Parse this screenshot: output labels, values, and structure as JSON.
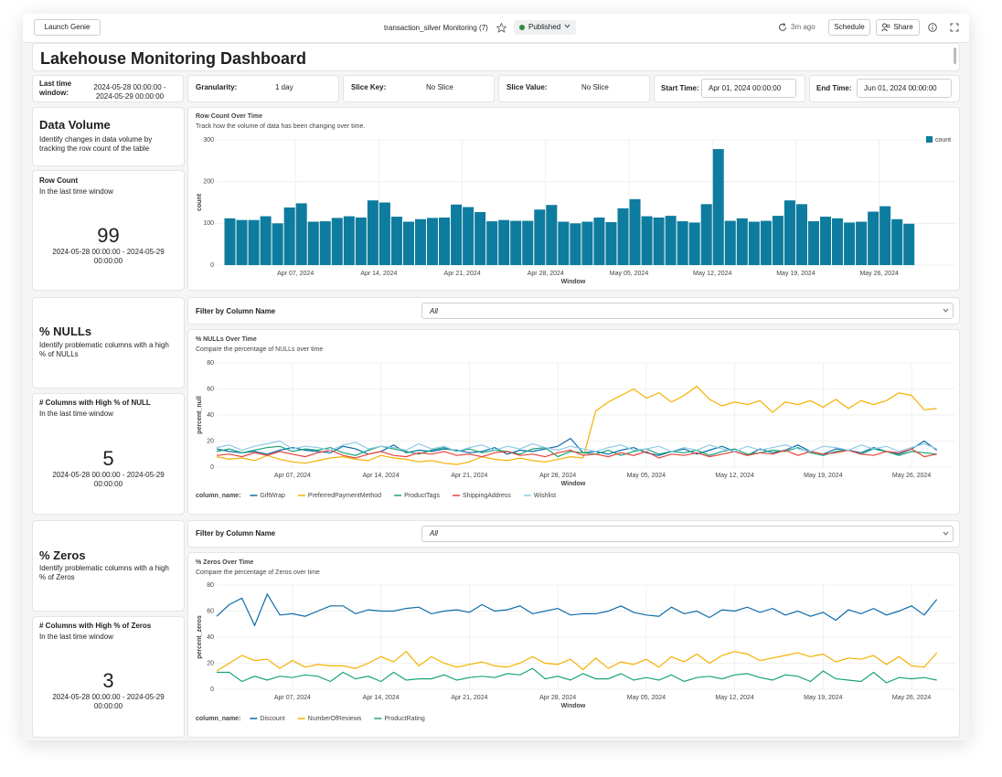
{
  "toolbar": {
    "launch_button": "Launch Genie",
    "dashboard_name": "transaction_silver Monitoring (7)",
    "status": "Published",
    "refreshed": "3m ago",
    "schedule": "Schedule",
    "share": "Share"
  },
  "title": "Lakehouse Monitoring Dashboard",
  "filters": {
    "time_window_label": "Last time window:",
    "time_window_value": "2024-05-28 00:00:00 - 2024-05-29 00:00:00",
    "granularity_label": "Granularity:",
    "granularity_value": "1 day",
    "slice_key_label": "Slice Key:",
    "slice_key_value": "No Slice",
    "slice_value_label": "Slice Value:",
    "slice_value_value": "No Slice",
    "start_label": "Start Time:",
    "start_value": "Apr 01, 2024 00:00:00",
    "end_label": "End Time:",
    "end_value": "Jun 01, 2024 00:00:00"
  },
  "sections": [
    {
      "heading": "Data Volume",
      "description": "Identify changes in data volume by tracking the row count of the table",
      "counter": {
        "title": "Row Count",
        "subtitle": "In the last time window",
        "value": 99,
        "range": "2024-05-28 00:00:00 - 2024-05-29 00:00:00"
      }
    },
    {
      "heading": "% NULLs",
      "description": "Identify problematic columns with a high % of NULLs",
      "filter": {
        "label": "Filter by Column Name",
        "value": "All"
      },
      "counter": {
        "title": "# Columns with High % of NULL",
        "subtitle": "In the last time window",
        "value": 5,
        "range": "2024-05-28 00:00:00 - 2024-05-29 00:00:00"
      }
    },
    {
      "heading": "% Zeros",
      "description": "Identify problematic columns with a high % of Zeros",
      "filter": {
        "label": "Filter by Column Name",
        "value": "All"
      },
      "counter": {
        "title": "# Columns with High % of Zeros",
        "subtitle": "In the last time window",
        "value": 3,
        "range": "2024-05-28 00:00:00 - 2024-05-29 00:00:00"
      }
    }
  ],
  "chart_data": [
    {
      "type": "bar",
      "title": "Row Count Over Time",
      "subtitle": "Track how the volume of data has been changing over time.",
      "x_label": "Window",
      "y_label": "count",
      "x": [
        "2024-04-01",
        "2024-04-02",
        "2024-04-03",
        "2024-04-04",
        "2024-04-05",
        "2024-04-06",
        "2024-04-07",
        "2024-04-08",
        "2024-04-09",
        "2024-04-10",
        "2024-04-11",
        "2024-04-12",
        "2024-04-13",
        "2024-04-14",
        "2024-04-15",
        "2024-04-16",
        "2024-04-17",
        "2024-04-18",
        "2024-04-19",
        "2024-04-20",
        "2024-04-21",
        "2024-04-22",
        "2024-04-23",
        "2024-04-24",
        "2024-04-25",
        "2024-04-26",
        "2024-04-27",
        "2024-04-28",
        "2024-04-29",
        "2024-04-30",
        "2024-05-01",
        "2024-05-02",
        "2024-05-03",
        "2024-05-04",
        "2024-05-05",
        "2024-05-06",
        "2024-05-07",
        "2024-05-08",
        "2024-05-09",
        "2024-05-10",
        "2024-05-11",
        "2024-05-12",
        "2024-05-13",
        "2024-05-14",
        "2024-05-15",
        "2024-05-16",
        "2024-05-17",
        "2024-05-18",
        "2024-05-19",
        "2024-05-20",
        "2024-05-21",
        "2024-05-22",
        "2024-05-23",
        "2024-05-24",
        "2024-05-25",
        "2024-05-26",
        "2024-05-27",
        "2024-05-28"
      ],
      "series": [
        {
          "name": "count",
          "color": "#0e7c9e",
          "values": [
            112,
            108,
            108,
            117,
            100,
            138,
            148,
            104,
            105,
            113,
            117,
            114,
            155,
            150,
            116,
            104,
            110,
            113,
            114,
            145,
            139,
            127,
            105,
            108,
            106,
            106,
            133,
            144,
            104,
            100,
            104,
            114,
            103,
            136,
            158,
            117,
            114,
            118,
            105,
            102,
            146,
            278,
            106,
            112,
            104,
            106,
            118,
            155,
            146,
            105,
            116,
            112,
            102,
            104,
            128,
            141,
            110,
            99
          ]
        }
      ],
      "ylim": [
        0,
        300
      ],
      "yticks": [
        0,
        100,
        200,
        300
      ],
      "xticks": [
        {
          "value": "2024-04-07",
          "label": "Apr 07, 2024"
        },
        {
          "value": "2024-04-14",
          "label": "Apr 14, 2024"
        },
        {
          "value": "2024-04-21",
          "label": "Apr 21, 2024"
        },
        {
          "value": "2024-04-28",
          "label": "Apr 28, 2024"
        },
        {
          "value": "2024-05-05",
          "label": "May 05, 2024"
        },
        {
          "value": "2024-05-12",
          "label": "May 12, 2024"
        },
        {
          "value": "2024-05-19",
          "label": "May 19, 2024"
        },
        {
          "value": "2024-05-26",
          "label": "May 26, 2024"
        }
      ],
      "grid": true,
      "legend": "top-right"
    },
    {
      "type": "line",
      "title": "% NULLs Over Time",
      "subtitle": "Compare the percentage of NULLs over time",
      "x_label": "Window",
      "y_label": "percent_null",
      "legend_title": "column_name:",
      "x": [
        "2024-04-01",
        "2024-04-02",
        "2024-04-03",
        "2024-04-04",
        "2024-04-05",
        "2024-04-06",
        "2024-04-07",
        "2024-04-08",
        "2024-04-09",
        "2024-04-10",
        "2024-04-11",
        "2024-04-12",
        "2024-04-13",
        "2024-04-14",
        "2024-04-15",
        "2024-04-16",
        "2024-04-17",
        "2024-04-18",
        "2024-04-19",
        "2024-04-20",
        "2024-04-21",
        "2024-04-22",
        "2024-04-23",
        "2024-04-24",
        "2024-04-25",
        "2024-04-26",
        "2024-04-27",
        "2024-04-28",
        "2024-04-29",
        "2024-04-30",
        "2024-05-01",
        "2024-05-02",
        "2024-05-03",
        "2024-05-04",
        "2024-05-05",
        "2024-05-06",
        "2024-05-07",
        "2024-05-08",
        "2024-05-09",
        "2024-05-10",
        "2024-05-11",
        "2024-05-12",
        "2024-05-13",
        "2024-05-14",
        "2024-05-15",
        "2024-05-16",
        "2024-05-17",
        "2024-05-18",
        "2024-05-19",
        "2024-05-20",
        "2024-05-21",
        "2024-05-22",
        "2024-05-23",
        "2024-05-24",
        "2024-05-25",
        "2024-05-26",
        "2024-05-27",
        "2024-05-28"
      ],
      "series": [
        {
          "name": "GiftWrap",
          "color": "#0b6ba8",
          "values": [
            14,
            12,
            11,
            12,
            10,
            13,
            15,
            13,
            12,
            11,
            16,
            14,
            10,
            12,
            17,
            11,
            13,
            12,
            14,
            13,
            11,
            12,
            15,
            10,
            13,
            12,
            14,
            16,
            22,
            11,
            12,
            10,
            13,
            15,
            11,
            9,
            12,
            14,
            10,
            13,
            16,
            12,
            9,
            14,
            11,
            13,
            17,
            12,
            10,
            14,
            13,
            11,
            15,
            12,
            10,
            14,
            20,
            13
          ]
        },
        {
          "name": "PreferredPaymentMethod",
          "color": "#f5b000",
          "values": [
            8,
            6,
            7,
            5,
            9,
            6,
            4,
            3,
            5,
            7,
            8,
            6,
            5,
            9,
            7,
            6,
            4,
            5,
            3,
            2,
            4,
            8,
            6,
            5,
            7,
            5,
            4,
            6,
            8,
            7,
            43,
            50,
            55,
            60,
            53,
            57,
            50,
            55,
            62,
            52,
            47,
            50,
            48,
            51,
            42,
            50,
            48,
            51,
            46,
            52,
            45,
            51,
            48,
            51,
            57,
            55,
            44,
            45
          ]
        },
        {
          "name": "ProductTags",
          "color": "#1aa37a",
          "values": [
            12,
            14,
            11,
            13,
            15,
            16,
            12,
            14,
            13,
            15,
            11,
            9,
            13,
            16,
            14,
            12,
            10,
            13,
            15,
            12,
            14,
            11,
            13,
            12,
            10,
            14,
            15,
            8,
            12,
            11,
            10,
            13,
            9,
            12,
            14,
            10,
            12,
            11,
            13,
            9,
            12,
            14,
            10,
            11,
            13,
            12,
            15,
            11,
            9,
            12,
            13,
            10,
            14,
            12,
            9,
            12,
            11,
            10
          ]
        },
        {
          "name": "ShippingAddress",
          "color": "#e8453c",
          "values": [
            9,
            10,
            8,
            11,
            9,
            12,
            10,
            8,
            11,
            13,
            9,
            7,
            10,
            12,
            9,
            8,
            11,
            10,
            12,
            9,
            10,
            8,
            11,
            12,
            9,
            10,
            8,
            11,
            13,
            9,
            10,
            8,
            11,
            9,
            12,
            7,
            10,
            9,
            11,
            8,
            10,
            12,
            9,
            11,
            10,
            13,
            9,
            12,
            10,
            11,
            13,
            10,
            9,
            12,
            11,
            14,
            8,
            10
          ]
        },
        {
          "name": "Wishlist",
          "color": "#8ecae6",
          "values": [
            15,
            17,
            13,
            16,
            18,
            20,
            14,
            16,
            15,
            13,
            17,
            19,
            14,
            16,
            15,
            13,
            18,
            14,
            16,
            12,
            15,
            17,
            13,
            16,
            14,
            18,
            15,
            13,
            16,
            14,
            12,
            15,
            17,
            13,
            14,
            16,
            12,
            15,
            13,
            17,
            14,
            12,
            16,
            13,
            15,
            17,
            14,
            12,
            16,
            15,
            13,
            17,
            14,
            16,
            12,
            15,
            18,
            14
          ]
        }
      ],
      "ylim": [
        0,
        80
      ],
      "yticks": [
        0,
        20,
        40,
        60,
        80
      ],
      "xticks": [
        {
          "value": "2024-04-07",
          "label": "Apr 07, 2024"
        },
        {
          "value": "2024-04-14",
          "label": "Apr 14, 2024"
        },
        {
          "value": "2024-04-21",
          "label": "Apr 21, 2024"
        },
        {
          "value": "2024-04-28",
          "label": "Apr 28, 2024"
        },
        {
          "value": "2024-05-05",
          "label": "May 05, 2024"
        },
        {
          "value": "2024-05-12",
          "label": "May 12, 2024"
        },
        {
          "value": "2024-05-19",
          "label": "May 19, 2024"
        },
        {
          "value": "2024-05-26",
          "label": "May 26, 2024"
        }
      ],
      "grid": true,
      "legend": "bottom-left"
    },
    {
      "type": "line",
      "title": "% Zeros Over Time",
      "subtitle": "Compare the percentage of Zeros over time",
      "x_label": "Window",
      "y_label": "percent_zeros",
      "legend_title": "column_name:",
      "x": [
        "2024-04-01",
        "2024-04-02",
        "2024-04-03",
        "2024-04-04",
        "2024-04-05",
        "2024-04-06",
        "2024-04-07",
        "2024-04-08",
        "2024-04-09",
        "2024-04-10",
        "2024-04-11",
        "2024-04-12",
        "2024-04-13",
        "2024-04-14",
        "2024-04-15",
        "2024-04-16",
        "2024-04-17",
        "2024-04-18",
        "2024-04-19",
        "2024-04-20",
        "2024-04-21",
        "2024-04-22",
        "2024-04-23",
        "2024-04-24",
        "2024-04-25",
        "2024-04-26",
        "2024-04-27",
        "2024-04-28",
        "2024-04-29",
        "2024-04-30",
        "2024-05-01",
        "2024-05-02",
        "2024-05-03",
        "2024-05-04",
        "2024-05-05",
        "2024-05-06",
        "2024-05-07",
        "2024-05-08",
        "2024-05-09",
        "2024-05-10",
        "2024-05-11",
        "2024-05-12",
        "2024-05-13",
        "2024-05-14",
        "2024-05-15",
        "2024-05-16",
        "2024-05-17",
        "2024-05-18",
        "2024-05-19",
        "2024-05-20",
        "2024-05-21",
        "2024-05-22",
        "2024-05-23",
        "2024-05-24",
        "2024-05-25",
        "2024-05-26",
        "2024-05-27",
        "2024-05-28"
      ],
      "series": [
        {
          "name": "Discount",
          "color": "#0b6ba8",
          "values": [
            56,
            65,
            70,
            49,
            73,
            57,
            58,
            56,
            60,
            64,
            64,
            58,
            61,
            60,
            60,
            62,
            63,
            58,
            60,
            61,
            59,
            65,
            60,
            61,
            64,
            58,
            60,
            62,
            57,
            58,
            58,
            60,
            64,
            59,
            57,
            56,
            63,
            58,
            60,
            55,
            61,
            60,
            63,
            59,
            62,
            57,
            60,
            56,
            59,
            53,
            61,
            58,
            62,
            57,
            60,
            64,
            57,
            69
          ]
        },
        {
          "name": "NumberOfReviews",
          "color": "#f5b000",
          "values": [
            14,
            20,
            26,
            22,
            23,
            16,
            22,
            17,
            19,
            18,
            18,
            16,
            20,
            25,
            21,
            29,
            18,
            25,
            20,
            17,
            19,
            21,
            18,
            17,
            20,
            25,
            20,
            19,
            23,
            15,
            24,
            16,
            21,
            19,
            23,
            17,
            25,
            21,
            27,
            20,
            26,
            29,
            27,
            22,
            24,
            26,
            28,
            25,
            27,
            21,
            24,
            23,
            26,
            19,
            25,
            18,
            17,
            28
          ]
        },
        {
          "name": "ProductRating",
          "color": "#1aa37a",
          "values": [
            13,
            13,
            6,
            10,
            7,
            10,
            9,
            11,
            10,
            6,
            13,
            8,
            10,
            6,
            13,
            7,
            8,
            8,
            11,
            7,
            9,
            10,
            9,
            12,
            11,
            16,
            8,
            10,
            7,
            12,
            8,
            8,
            12,
            7,
            9,
            7,
            11,
            6,
            9,
            10,
            8,
            11,
            12,
            9,
            7,
            11,
            10,
            6,
            14,
            8,
            7,
            6,
            13,
            5,
            9,
            8,
            9,
            7
          ]
        }
      ],
      "ylim": [
        0,
        80
      ],
      "yticks": [
        0,
        20,
        40,
        60,
        80
      ],
      "xticks": [
        {
          "value": "2024-04-07",
          "label": "Apr 07, 2024"
        },
        {
          "value": "2024-04-14",
          "label": "Apr 14, 2024"
        },
        {
          "value": "2024-04-21",
          "label": "Apr 21, 2024"
        },
        {
          "value": "2024-04-28",
          "label": "Apr 28, 2024"
        },
        {
          "value": "2024-05-05",
          "label": "May 05, 2024"
        },
        {
          "value": "2024-05-12",
          "label": "May 12, 2024"
        },
        {
          "value": "2024-05-19",
          "label": "May 19, 2024"
        },
        {
          "value": "2024-05-26",
          "label": "May 26, 2024"
        }
      ],
      "grid": true,
      "legend": "bottom-left"
    }
  ]
}
